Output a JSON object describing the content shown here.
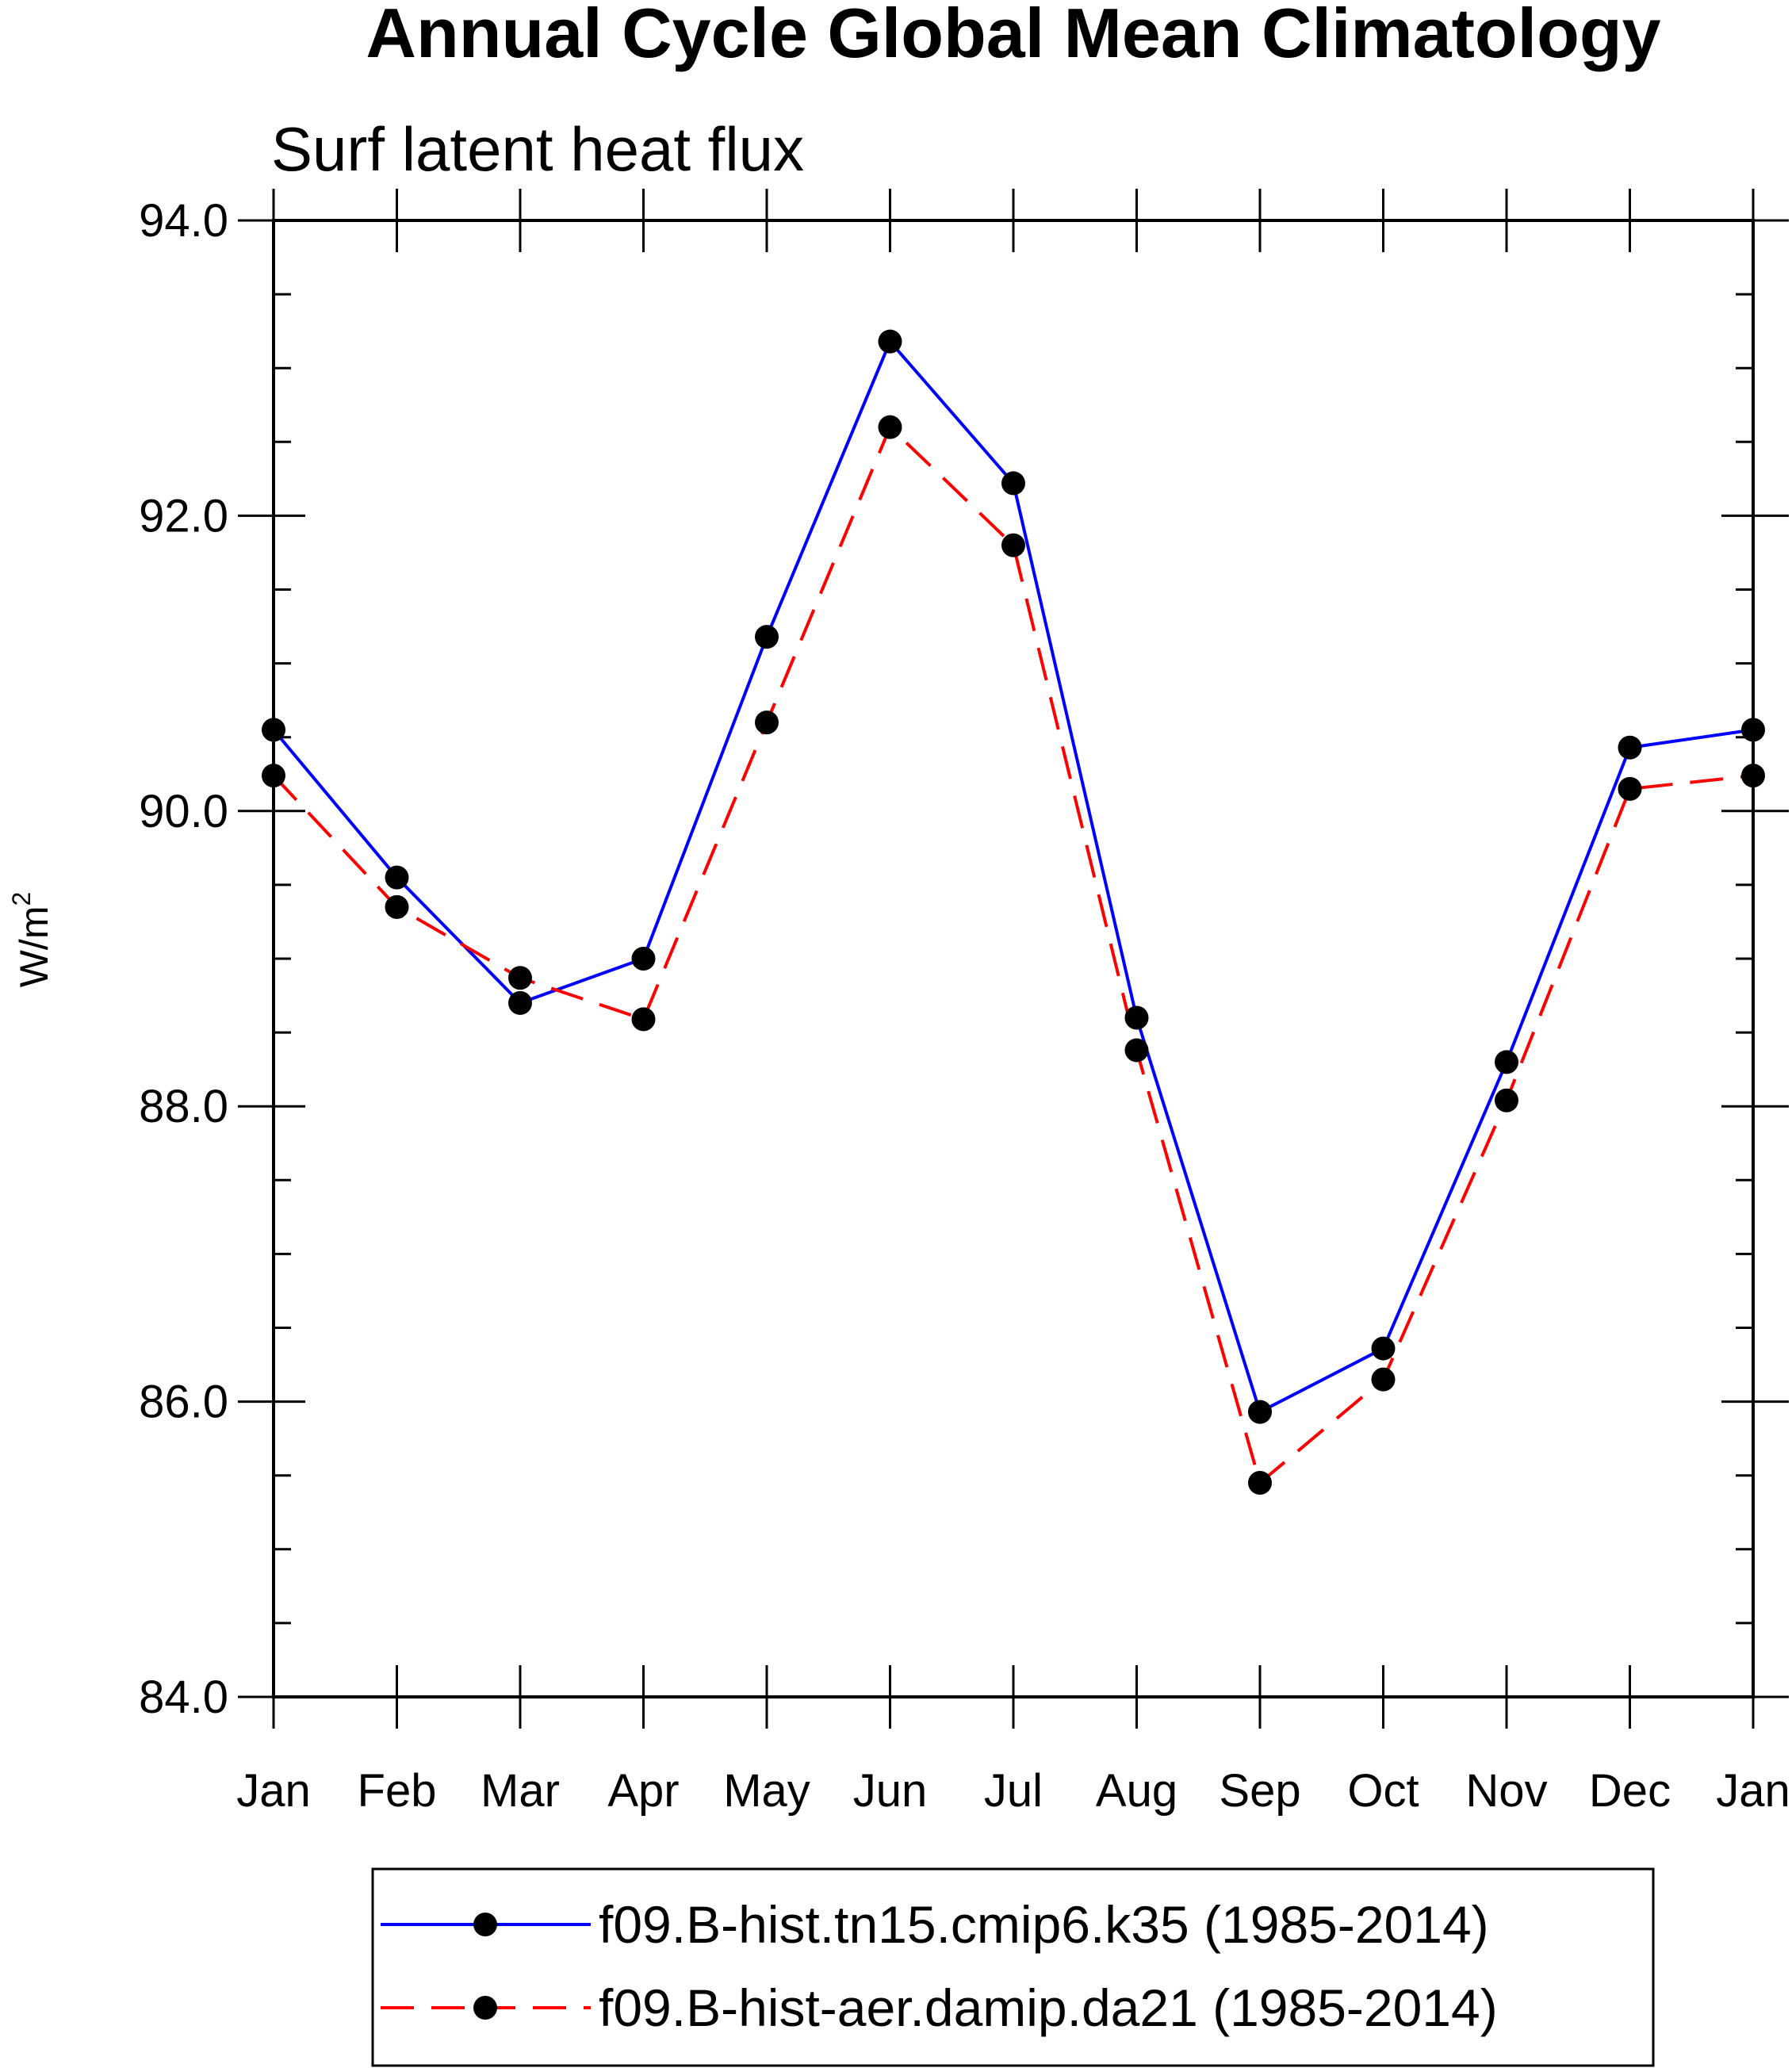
{
  "chart_data": {
    "type": "line",
    "title": "Annual Cycle Global Mean Climatology",
    "subtitle": "Surf latent heat flux",
    "ylabel": "W/m",
    "ylabel_sup": "2",
    "xlabel": "",
    "categories": [
      "Jan",
      "Feb",
      "Mar",
      "Apr",
      "May",
      "Jun",
      "Jul",
      "Aug",
      "Sep",
      "Oct",
      "Nov",
      "Dec",
      "Jan"
    ],
    "ylim": [
      84.0,
      94.0
    ],
    "yticks": [
      84.0,
      86.0,
      88.0,
      90.0,
      92.0,
      94.0
    ],
    "ytick_labels": [
      "84.0",
      "86.0",
      "88.0",
      "90.0",
      "92.0",
      "94.0"
    ],
    "y_minor_step": 0.5,
    "series": [
      {
        "name": "f09.B-hist.tn15.cmip6.k35 (1985-2014)",
        "color": "#0000ff",
        "dash": "solid",
        "values": [
          90.55,
          89.55,
          88.7,
          89.0,
          91.18,
          93.18,
          92.22,
          88.6,
          85.93,
          86.36,
          88.3,
          90.43,
          90.55
        ]
      },
      {
        "name": "f09.B-hist-aer.damip.da21 (1985-2014)",
        "color": "#ff0000",
        "dash": "dashed",
        "values": [
          90.24,
          89.35,
          88.87,
          88.59,
          90.6,
          92.6,
          91.8,
          88.38,
          85.45,
          86.15,
          88.04,
          90.15,
          90.24
        ]
      }
    ],
    "marker_color": "#000000",
    "legend_position": "bottom-center"
  }
}
